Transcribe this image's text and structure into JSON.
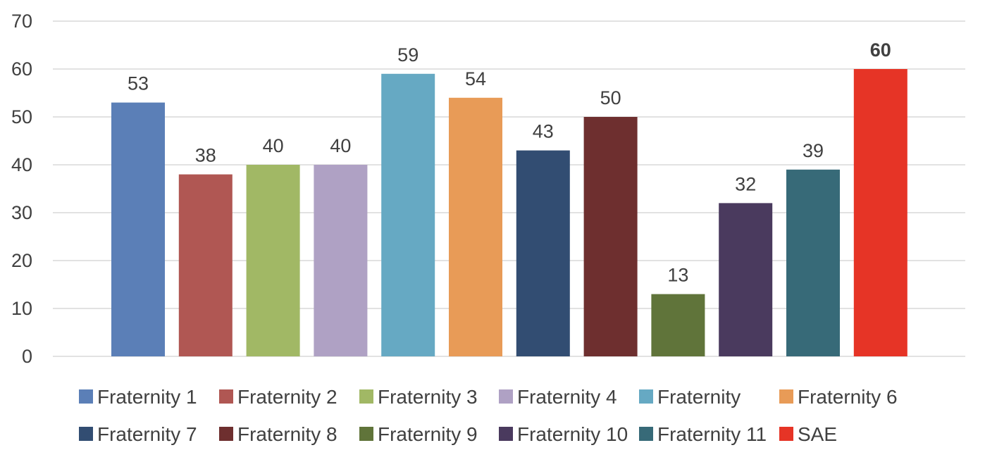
{
  "chart_data": {
    "type": "bar",
    "title": "",
    "xlabel": "",
    "ylabel": "",
    "ylim": [
      0,
      70
    ],
    "yticks": [
      0,
      10,
      20,
      30,
      40,
      50,
      60,
      70
    ],
    "grid": true,
    "legend_position": "bottom",
    "categories": [
      "Fraternity 1",
      "Fraternity 2",
      "Fraternity 3",
      "Fraternity 4",
      "Fraternity",
      "Fraternity 6",
      "Fraternity 7",
      "Fraternity 8",
      "Fraternity 9",
      "Fraternity 10",
      "Fraternity 11",
      "SAE"
    ],
    "values": [
      53,
      38,
      40,
      40,
      59,
      54,
      43,
      50,
      13,
      32,
      39,
      60
    ],
    "colors": [
      "#5b7fb7",
      "#b05753",
      "#a1b865",
      "#afa1c4",
      "#66a9c3",
      "#e89b57",
      "#324d72",
      "#6e2f2f",
      "#60743a",
      "#4a3a5e",
      "#376a78",
      "#e63426"
    ],
    "bold_labels": [
      false,
      false,
      false,
      false,
      false,
      false,
      false,
      false,
      false,
      false,
      false,
      true
    ]
  }
}
